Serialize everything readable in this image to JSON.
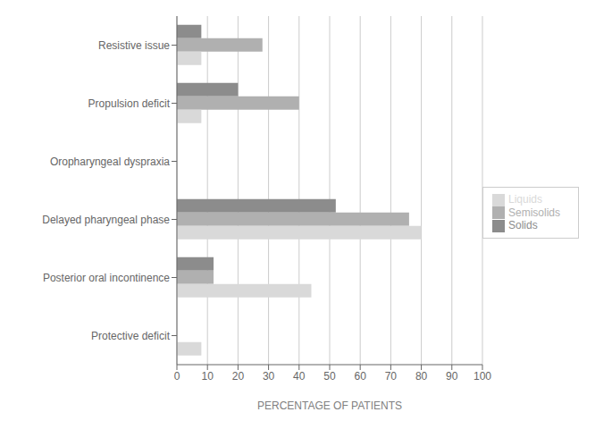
{
  "chart_data": {
    "type": "bar",
    "orientation": "horizontal",
    "categories": [
      "Resistive issue",
      "Propulsion deficit",
      "Oropharyngeal dyspraxia",
      "Delayed pharyngeal phase",
      "Posterior oral incontinence",
      "Protective deficit"
    ],
    "series": [
      {
        "name": "Solids",
        "color": "#8c8c8c",
        "values": [
          8,
          20,
          0,
          52,
          12,
          0
        ]
      },
      {
        "name": "Semisolids",
        "color": "#b0b0b0",
        "values": [
          28,
          40,
          0,
          76,
          12,
          0
        ]
      },
      {
        "name": "Liquids",
        "color": "#d9d9d9",
        "values": [
          8,
          8,
          0,
          80,
          44,
          8
        ]
      }
    ],
    "xlabel": "PERCENTAGE OF PATIENTS",
    "xlim": [
      0,
      100
    ],
    "xticks": [
      0,
      10,
      20,
      30,
      40,
      50,
      60,
      70,
      80,
      90,
      100
    ],
    "grid": true,
    "legend": "right"
  }
}
